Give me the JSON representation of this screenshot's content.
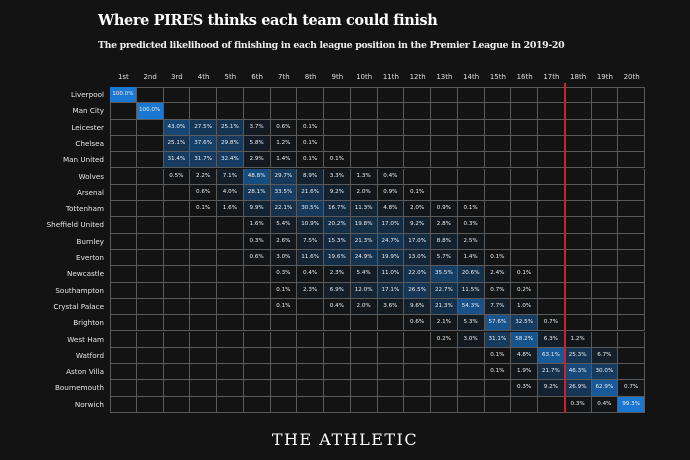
{
  "header": {
    "title": "Where PIRES thinks each team could finish",
    "subtitle": "The predicted likelihood of finishing in each league position in the Premier League in 2019-20"
  },
  "footer": {
    "logo_text": "THE ATHLETIC"
  },
  "colors": {
    "background": "#131313",
    "max_blue": "#1a78d2",
    "grid": "#5a5a5a",
    "relegation_line": "#c8232c"
  },
  "chart_data": {
    "type": "heatmap",
    "title": "Where PIRES thinks each team could finish",
    "columns": [
      "1st",
      "2nd",
      "3rd",
      "4th",
      "5th",
      "6th",
      "7th",
      "8th",
      "9th",
      "10th",
      "11th",
      "12th",
      "13th",
      "14th",
      "15th",
      "16th",
      "17th",
      "18th",
      "19th",
      "20th"
    ],
    "relegation_line_after": "17th",
    "value_unit": "%",
    "rows": [
      {
        "team": "Liverpool",
        "values": {
          "1": 100.0
        }
      },
      {
        "team": "Man City",
        "values": {
          "2": 100.0
        }
      },
      {
        "team": "Leicester",
        "values": {
          "3": 43.0,
          "4": 27.5,
          "5": 25.1,
          "6": 3.7,
          "7": 0.6,
          "8": 0.1
        }
      },
      {
        "team": "Chelsea",
        "values": {
          "3": 25.1,
          "4": 37.6,
          "5": 29.8,
          "6": 5.8,
          "7": 1.2,
          "8": 0.1
        }
      },
      {
        "team": "Man United",
        "values": {
          "3": 31.4,
          "4": 31.7,
          "5": 32.4,
          "6": 2.9,
          "7": 1.4,
          "8": 0.1,
          "9": 0.1
        }
      },
      {
        "team": "Wolves",
        "values": {
          "3": 0.5,
          "4": 2.2,
          "5": 7.1,
          "6": 48.8,
          "7": 29.7,
          "8": 8.9,
          "9": 3.3,
          "10": 1.3,
          "11": 0.4
        }
      },
      {
        "team": "Arsenal",
        "values": {
          "4": 0.6,
          "5": 4.0,
          "6": 28.1,
          "7": 33.5,
          "8": 21.6,
          "9": 9.2,
          "10": 2.0,
          "11": 0.9,
          "12": 0.1
        }
      },
      {
        "team": "Tottenham",
        "values": {
          "4": 0.1,
          "5": 1.6,
          "6": 9.9,
          "7": 22.1,
          "8": 30.5,
          "9": 16.7,
          "10": 11.3,
          "11": 4.8,
          "12": 2.0,
          "13": 0.9,
          "14": 0.1
        }
      },
      {
        "team": "Sheffield United",
        "values": {
          "6": 1.6,
          "7": 5.4,
          "8": 10.9,
          "9": 20.2,
          "10": 19.8,
          "11": 17.0,
          "12": 9.2,
          "13": 2.8,
          "14": 0.3
        }
      },
      {
        "team": "Burnley",
        "values": {
          "6": 0.3,
          "7": 2.6,
          "8": 7.5,
          "9": 15.3,
          "10": 21.3,
          "11": 24.7,
          "12": 17.0,
          "13": 8.8,
          "14": 2.5
        }
      },
      {
        "team": "Everton",
        "values": {
          "6": 0.6,
          "7": 3.0,
          "8": 11.6,
          "9": 19.6,
          "10": 24.9,
          "11": 19.9,
          "12": 13.0,
          "13": 5.7,
          "14": 1.4,
          "15": 0.1
        }
      },
      {
        "team": "Newcastle",
        "values": {
          "7": 0.3,
          "8": 0.4,
          "9": 2.3,
          "10": 5.4,
          "11": 11.0,
          "12": 22.0,
          "13": 35.5,
          "14": 20.6,
          "15": 2.4,
          "16": 0.1
        }
      },
      {
        "team": "Southampton",
        "values": {
          "7": 0.1,
          "8": 2.3,
          "9": 6.9,
          "10": 12.0,
          "11": 17.1,
          "12": 26.5,
          "13": 22.7,
          "14": 11.5,
          "15": 0.7,
          "16": 0.2
        }
      },
      {
        "team": "Crystal Palace",
        "values": {
          "7": 0.1,
          "9": 0.4,
          "10": 2.0,
          "11": 3.6,
          "12": 9.6,
          "13": 21.3,
          "14": 54.3,
          "15": 7.7,
          "16": 1.0
        }
      },
      {
        "team": "Brighton",
        "values": {
          "12": 0.6,
          "13": 2.1,
          "14": 5.3,
          "15": 57.6,
          "16": 32.5,
          "17": 0.7
        }
      },
      {
        "team": "West Ham",
        "values": {
          "13": 0.2,
          "14": 3.0,
          "15": 31.1,
          "16": 58.2,
          "17": 6.3,
          "18": 1.2
        }
      },
      {
        "team": "Watford",
        "values": {
          "15": 0.1,
          "16": 4.8,
          "17": 63.1,
          "18": 25.3,
          "19": 6.7
        }
      },
      {
        "team": "Aston Villa",
        "values": {
          "15": 0.1,
          "16": 1.9,
          "17": 21.7,
          "18": 46.3,
          "19": 30.0
        }
      },
      {
        "team": "Bournemouth",
        "values": {
          "16": 0.3,
          "17": 9.2,
          "18": 26.9,
          "19": 62.9,
          "20": 0.7
        }
      },
      {
        "team": "Norwich",
        "values": {
          "18": 0.3,
          "19": 0.4,
          "20": 99.3
        }
      }
    ]
  }
}
